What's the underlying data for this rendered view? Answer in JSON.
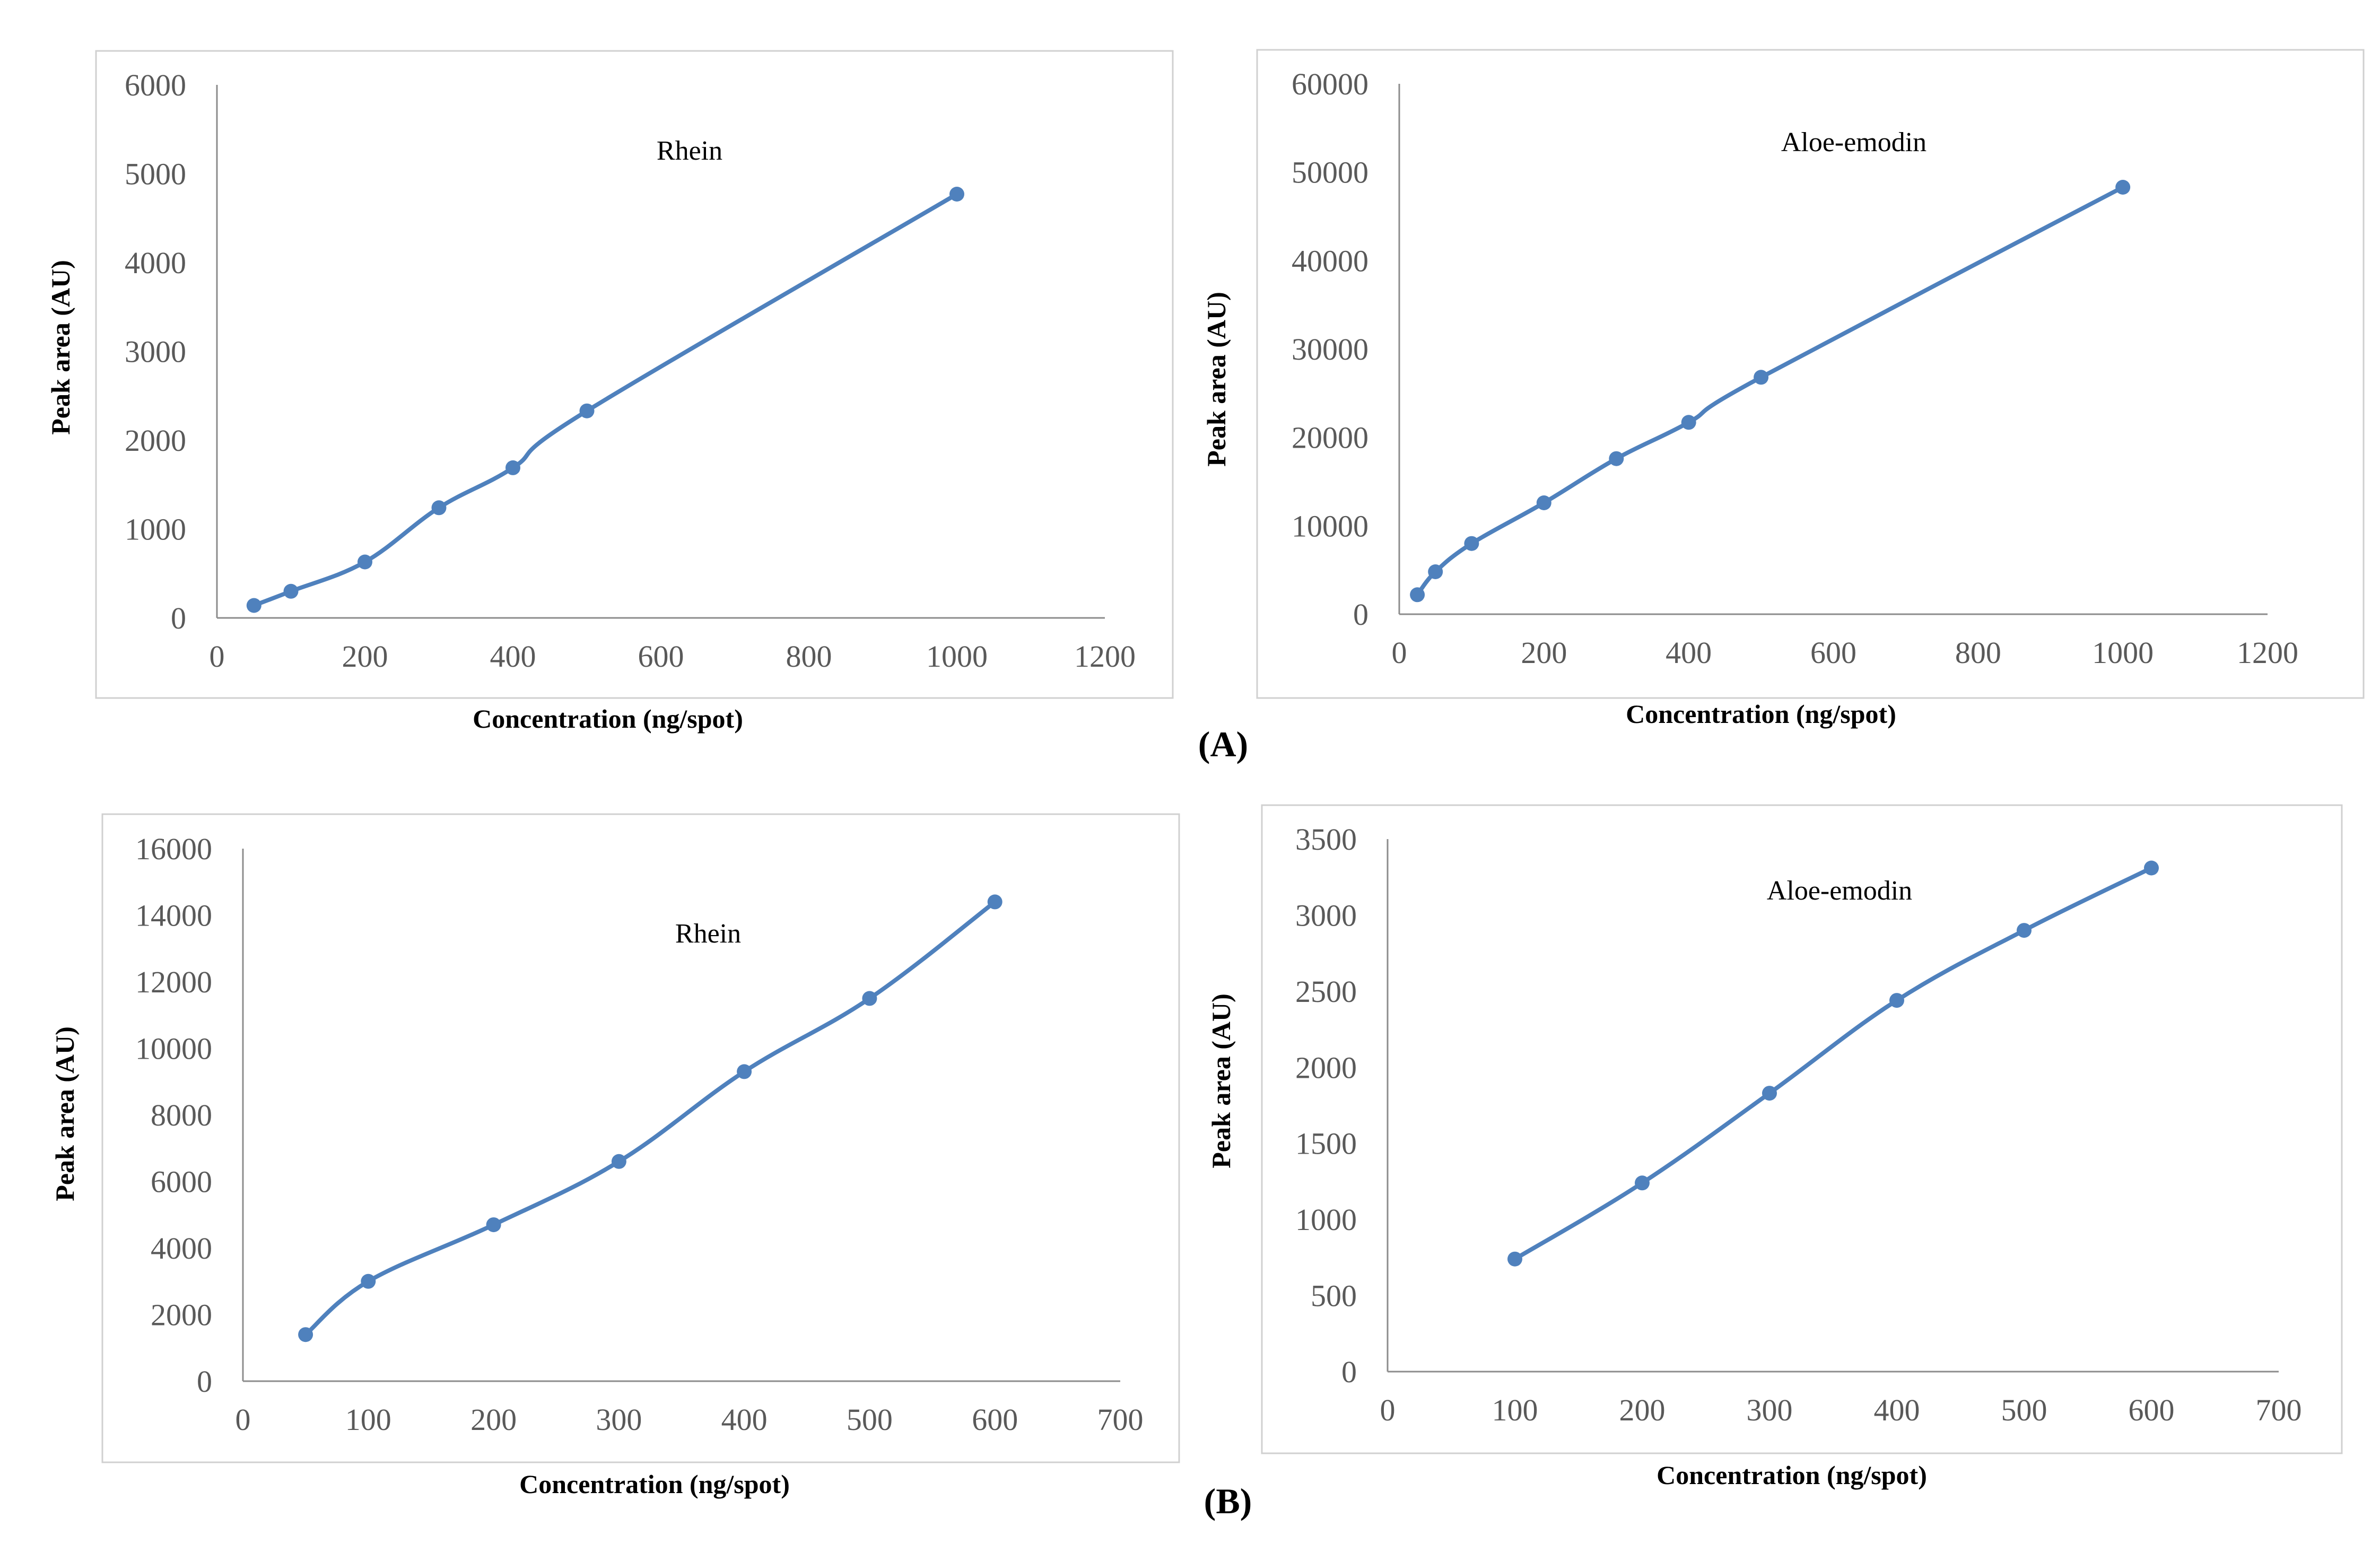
{
  "figure": {
    "panel_labels": [
      "(A)",
      "(B)"
    ],
    "series_color": "#4f81bd"
  },
  "chart_data": [
    {
      "type": "line",
      "panel": "(A)",
      "title": "Rhein",
      "xlabel": "Concentration (ng/spot)",
      "ylabel": "Peak area (AU)",
      "xlim": [
        0,
        1200
      ],
      "ylim": [
        0,
        6000
      ],
      "xticks": [
        0,
        200,
        400,
        600,
        800,
        1000,
        1200
      ],
      "yticks": [
        0,
        1000,
        2000,
        3000,
        4000,
        5000,
        6000
      ],
      "series": [
        {
          "name": "Rhein",
          "x": [
            50,
            100,
            200,
            300,
            400,
            500,
            1000
          ],
          "y": [
            140,
            300,
            630,
            1240,
            1690,
            2330,
            4770
          ]
        }
      ]
    },
    {
      "type": "line",
      "panel": "(A)",
      "title": "Aloe-emodin",
      "xlabel": "Concentration (ng/spot)",
      "ylabel": "Peak area (AU)",
      "xlim": [
        0,
        1200
      ],
      "ylim": [
        0,
        60000
      ],
      "xticks": [
        0,
        200,
        400,
        600,
        800,
        1000,
        1200
      ],
      "yticks": [
        0,
        10000,
        20000,
        30000,
        40000,
        50000,
        60000
      ],
      "series": [
        {
          "name": "Aloe-emodin",
          "x": [
            25,
            50,
            100,
            200,
            300,
            400,
            500,
            1000
          ],
          "y": [
            2200,
            4800,
            8000,
            12600,
            17600,
            21700,
            26800,
            48300
          ]
        }
      ]
    },
    {
      "type": "line",
      "panel": "(B)",
      "title": "Rhein",
      "xlabel": "Concentration (ng/spot)",
      "ylabel": "Peak area (AU)",
      "xlim": [
        0,
        700
      ],
      "ylim": [
        0,
        16000
      ],
      "xticks": [
        0,
        100,
        200,
        300,
        400,
        500,
        600,
        700
      ],
      "yticks": [
        0,
        2000,
        4000,
        6000,
        8000,
        10000,
        12000,
        14000,
        16000
      ],
      "series": [
        {
          "name": "Rhein",
          "x": [
            50,
            100,
            200,
            300,
            400,
            500,
            600
          ],
          "y": [
            1400,
            3000,
            4700,
            6600,
            9300,
            11500,
            14400
          ]
        }
      ]
    },
    {
      "type": "line",
      "panel": "(B)",
      "title": "Aloe-emodin",
      "xlabel": "Concentration (ng/spot)",
      "ylabel": "Peak area (AU)",
      "xlim": [
        0,
        700
      ],
      "ylim": [
        0,
        3500
      ],
      "xticks": [
        0,
        100,
        200,
        300,
        400,
        500,
        600,
        700
      ],
      "yticks": [
        0,
        500,
        1000,
        1500,
        2000,
        2500,
        3000,
        3500
      ],
      "series": [
        {
          "name": "Aloe-emodin",
          "x": [
            100,
            200,
            300,
            400,
            500,
            600
          ],
          "y": [
            740,
            1240,
            1830,
            2440,
            2900,
            3310
          ]
        }
      ]
    }
  ]
}
